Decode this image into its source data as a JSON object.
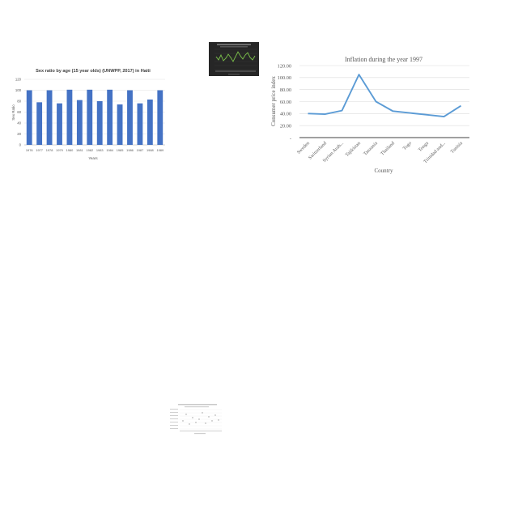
{
  "chart_data": [
    {
      "type": "bar",
      "title": "Sex ratio by age (15 year olds) (UNWPP, 2017) in Haiti",
      "xlabel": "Years",
      "ylabel": "Sex Ratio",
      "ylim": [
        0,
        120
      ],
      "yticks": [
        "0",
        "20",
        "40",
        "60",
        "80",
        "100",
        "120"
      ],
      "categories": [
        "1976",
        "1977",
        "1978",
        "1979",
        "1980",
        "1981",
        "1982",
        "1983",
        "1984",
        "1985",
        "1986",
        "1987",
        "1988",
        "1989"
      ],
      "values": [
        100,
        78,
        100,
        76,
        101,
        82,
        101,
        80,
        101,
        74,
        100,
        76,
        83,
        100
      ],
      "grid": true,
      "color": "#4472c4"
    },
    {
      "type": "line",
      "title": "Inflation during the year 1997",
      "xlabel": "Country",
      "ylabel": "Consumer price index",
      "ylim": [
        0,
        120
      ],
      "yticks": [
        "-",
        "20.00",
        "40.00",
        "60.00",
        "80.00",
        "100.00",
        "120.00"
      ],
      "categories": [
        "Sweden",
        "Switzerland",
        "Syrian Arab...",
        "Tajikistan",
        "Tanzania",
        "Thailand",
        "Togo",
        "Tonga",
        "Trinidad and...",
        "Tunisia"
      ],
      "values": [
        40,
        39,
        45,
        105,
        60,
        44,
        41,
        38,
        35,
        53
      ],
      "grid": true,
      "color": "#5b9bd5"
    },
    {
      "type": "line",
      "background": "dark",
      "color": "#7cc24a"
    },
    {
      "type": "scatter"
    }
  ]
}
